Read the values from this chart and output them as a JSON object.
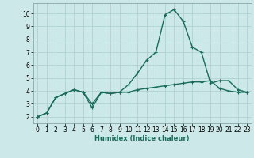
{
  "xlabel": "Humidex (Indice chaleur)",
  "x": [
    0,
    1,
    2,
    3,
    4,
    5,
    6,
    7,
    8,
    9,
    10,
    11,
    12,
    13,
    14,
    15,
    16,
    17,
    18,
    19,
    20,
    21,
    22,
    23
  ],
  "line1": [
    2.0,
    2.3,
    3.5,
    3.8,
    4.1,
    3.9,
    3.0,
    3.9,
    3.8,
    3.9,
    3.9,
    4.1,
    4.2,
    4.3,
    4.4,
    4.5,
    4.6,
    4.7,
    4.7,
    4.8,
    4.2,
    4.0,
    3.9,
    3.9
  ],
  "line2": [
    2.0,
    2.3,
    3.5,
    3.8,
    4.1,
    3.9,
    2.7,
    3.9,
    3.8,
    3.9,
    4.5,
    5.4,
    6.4,
    7.0,
    9.9,
    10.3,
    9.4,
    7.4,
    7.0,
    4.6,
    4.8,
    4.8,
    4.1,
    3.9
  ],
  "line_color": "#1a6b5a",
  "bg_color": "#cce8e8",
  "grid_color": "#aacece",
  "ylim": [
    1.5,
    10.8
  ],
  "xlim": [
    -0.5,
    23.5
  ],
  "yticks": [
    2,
    3,
    4,
    5,
    6,
    7,
    8,
    9,
    10
  ],
  "xtick_labels": [
    "0",
    "1",
    "2",
    "3",
    "4",
    "5",
    "6",
    "7",
    "8",
    "9",
    "1011",
    "1213",
    "1415",
    "1617",
    "1819",
    "2021",
    "2223"
  ],
  "marker": "+",
  "markersize": 3,
  "linewidth": 1.0,
  "tick_fontsize": 5.5,
  "xlabel_fontsize": 6.0
}
